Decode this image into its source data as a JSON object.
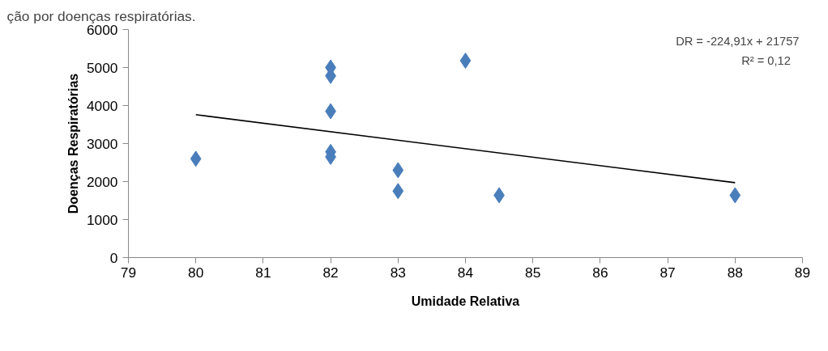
{
  "chart_data": {
    "type": "scatter",
    "xlabel": "Umidade Relativa",
    "ylabel": "Doenças Respiratórias",
    "annotations": [
      "ção por doenças respiratórias.",
      "DR = -224,91x + 21757",
      "R² = 0,12"
    ],
    "xlim": [
      79,
      89
    ],
    "xticks": [
      79,
      80,
      81,
      82,
      83,
      84,
      85,
      86,
      87,
      88,
      89
    ],
    "ylim": [
      0,
      6000
    ],
    "yticks": [
      0,
      1000,
      2000,
      3000,
      4000,
      5000,
      6000
    ],
    "grid": false,
    "series": [
      {
        "color": "#4a7ebb",
        "marker": "diamond",
        "x": [
          80,
          82,
          82,
          82,
          82,
          82,
          83,
          83,
          84,
          84.5,
          88
        ],
        "values": [
          2600,
          5000,
          4780,
          3850,
          2780,
          2650,
          2300,
          1750,
          5180,
          1640,
          1640
        ]
      },
      {
        "type": "line",
        "color": "#000000",
        "x": [
          80,
          88
        ],
        "values": [
          3760,
          1970
        ],
        "line_style": "solid"
      }
    ]
  }
}
